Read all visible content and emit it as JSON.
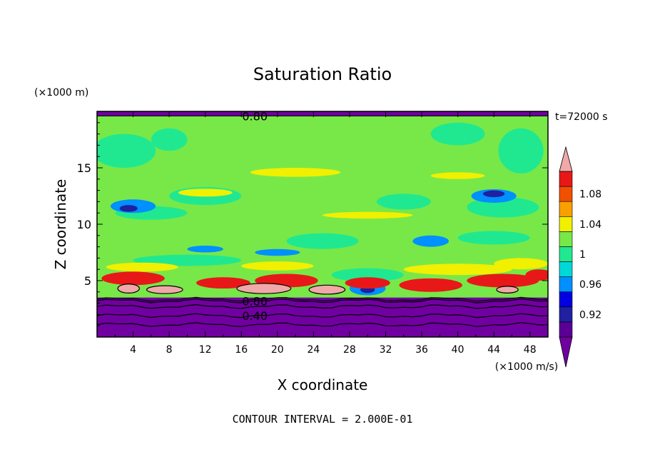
{
  "chart_data": {
    "type": "heatmap",
    "title": "Saturation Ratio",
    "xlabel": "X coordinate",
    "ylabel": "Z coordinate",
    "x_units": "(×1000 m/s)",
    "y_units": "(×1000 m)",
    "time_label": "t=72000 s",
    "footer": "CONTOUR INTERVAL = 2.000E-01",
    "xlim": [
      0,
      50
    ],
    "ylim": [
      0,
      20
    ],
    "x_ticks": [
      4,
      8,
      12,
      16,
      20,
      24,
      28,
      32,
      36,
      40,
      44,
      48
    ],
    "y_ticks": [
      5,
      10,
      15
    ],
    "contour_labels": [
      {
        "text": "0.80",
        "x": 17.5,
        "y": 19.6
      },
      {
        "text": "0.80",
        "x": 17.5,
        "y": 3.2
      },
      {
        "text": "0.40",
        "x": 17.5,
        "y": 1.9
      }
    ],
    "colorbar": {
      "levels": [
        0.9,
        0.92,
        0.94,
        0.96,
        0.98,
        1.0,
        1.02,
        1.04,
        1.06,
        1.08,
        1.1
      ],
      "tick_labels": [
        "0.92",
        "0.96",
        "1",
        "1.04",
        "1.08"
      ],
      "tick_values": [
        0.92,
        0.96,
        1.0,
        1.04,
        1.08
      ],
      "colors": [
        "#5a0096",
        "#2020a0",
        "#0000e0",
        "#0090ff",
        "#00d8d8",
        "#20e890",
        "#78e848",
        "#f0f000",
        "#f8a000",
        "#f05000",
        "#e81818"
      ],
      "under_color": "#7000a0",
      "over_color": "#f0a8a8"
    },
    "colors": {
      "low": "#7000a0",
      "background_field": "#78e848",
      "moist": "#20e890",
      "dry": "#0090ff",
      "very_dry": "#2020a0",
      "high": "#f0f000",
      "peak": "#e81818",
      "supersat": "#f0a8a8"
    }
  }
}
